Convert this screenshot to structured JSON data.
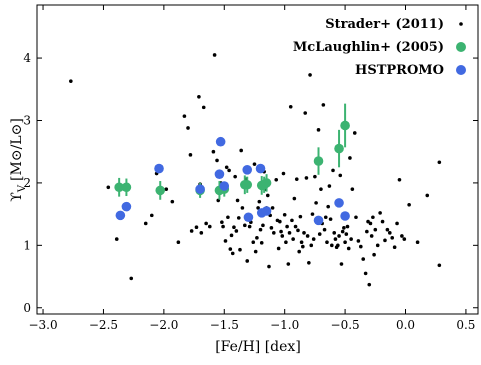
{
  "chart_data": {
    "type": "scatter",
    "title": "",
    "xlabel": "[Fe/H] [dex]",
    "ylabel_main": "ϒ",
    "ylabel_sub": "V",
    "ylabel_units": "[M⊙/L⊙]",
    "xlim": [
      -3.05,
      0.6
    ],
    "ylim": [
      -0.1,
      4.85
    ],
    "x_ticks": [
      -3.0,
      -2.5,
      -2.0,
      -1.5,
      -1.0,
      -0.5,
      0.0,
      0.5
    ],
    "x_tick_labels": [
      "−3.0",
      "−2.5",
      "−2.0",
      "−1.5",
      "−1.0",
      "−0.5",
      "0.0",
      "0.5"
    ],
    "y_ticks": [
      0,
      1,
      2,
      3,
      4
    ],
    "y_tick_labels": [
      "0",
      "1",
      "2",
      "3",
      "4"
    ],
    "grid": false,
    "legend_position": "top-right",
    "series": [
      {
        "name": "Strader+ (2011)",
        "color": "#000000",
        "marker": "small-dot",
        "points": [
          [
            -2.77,
            3.63
          ],
          [
            -2.46,
            1.93
          ],
          [
            -2.39,
            1.1
          ],
          [
            -2.27,
            0.47
          ],
          [
            -2.15,
            1.35
          ],
          [
            -2.1,
            1.48
          ],
          [
            -2.06,
            2.15
          ],
          [
            -1.98,
            1.9
          ],
          [
            -1.93,
            1.7
          ],
          [
            -1.88,
            1.05
          ],
          [
            -1.83,
            3.07
          ],
          [
            -1.8,
            2.88
          ],
          [
            -1.78,
            2.45
          ],
          [
            -1.77,
            1.23
          ],
          [
            -1.73,
            1.29
          ],
          [
            -1.71,
            3.38
          ],
          [
            -1.7,
            1.98
          ],
          [
            -1.69,
            1.2
          ],
          [
            -1.67,
            3.21
          ],
          [
            -1.65,
            1.35
          ],
          [
            -1.62,
            1.3
          ],
          [
            -1.59,
            2.5
          ],
          [
            -1.58,
            4.05
          ],
          [
            -1.56,
            2.36
          ],
          [
            -1.55,
            1.72
          ],
          [
            -1.53,
            2.0
          ],
          [
            -1.52,
            1.37
          ],
          [
            -1.51,
            1.3
          ],
          [
            -1.49,
            1.07
          ],
          [
            -1.48,
            2.25
          ],
          [
            -1.47,
            1.45
          ],
          [
            -1.46,
            2.2
          ],
          [
            -1.45,
            0.94
          ],
          [
            -1.44,
            1.16
          ],
          [
            -1.43,
            0.87
          ],
          [
            -1.42,
            1.29
          ],
          [
            -1.41,
            2.1
          ],
          [
            -1.4,
            1.23
          ],
          [
            -1.39,
            1.72
          ],
          [
            -1.38,
            1.44
          ],
          [
            -1.37,
            0.93
          ],
          [
            -1.36,
            2.52
          ],
          [
            -1.35,
            1.6
          ],
          [
            -1.34,
            1.95
          ],
          [
            -1.33,
            1.32
          ],
          [
            -1.32,
            2.06
          ],
          [
            -1.31,
            0.75
          ],
          [
            -1.29,
            1.3
          ],
          [
            -1.28,
            1.37
          ],
          [
            -1.26,
            1.05
          ],
          [
            -1.25,
            2.3
          ],
          [
            -1.24,
            0.9
          ],
          [
            -1.23,
            1.12
          ],
          [
            -1.22,
            1.6
          ],
          [
            -1.21,
            1.7
          ],
          [
            -1.2,
            1.25
          ],
          [
            -1.19,
            1.04
          ],
          [
            -1.18,
            1.32
          ],
          [
            -1.17,
            2.18
          ],
          [
            -1.16,
            1.9
          ],
          [
            -1.15,
            1.6
          ],
          [
            -1.14,
            1.8
          ],
          [
            -1.13,
            0.66
          ],
          [
            -1.12,
            1.48
          ],
          [
            -1.11,
            1.28
          ],
          [
            -1.1,
            1.6
          ],
          [
            -1.09,
            1.2
          ],
          [
            -1.07,
            2.05
          ],
          [
            -1.06,
            1.4
          ],
          [
            -1.05,
            0.95
          ],
          [
            -1.04,
            1.38
          ],
          [
            -1.03,
            1.22
          ],
          [
            -1.02,
            1.15
          ],
          [
            -1.01,
            2.15
          ],
          [
            -1.0,
            1.49
          ],
          [
            -0.99,
            1.05
          ],
          [
            -0.98,
            1.3
          ],
          [
            -0.97,
            0.7
          ],
          [
            -0.96,
            1.2
          ],
          [
            -0.95,
            3.22
          ],
          [
            -0.94,
            1.4
          ],
          [
            -0.93,
            1.1
          ],
          [
            -0.92,
            1.75
          ],
          [
            -0.91,
            1.3
          ],
          [
            -0.9,
            2.06
          ],
          [
            -0.89,
            1.24
          ],
          [
            -0.88,
            0.9
          ],
          [
            -0.87,
            1.46
          ],
          [
            -0.86,
            1.05
          ],
          [
            -0.85,
            0.98
          ],
          [
            -0.84,
            1.2
          ],
          [
            -0.83,
            3.12
          ],
          [
            -0.82,
            2.08
          ],
          [
            -0.81,
            1.15
          ],
          [
            -0.8,
            0.72
          ],
          [
            -0.79,
            3.73
          ],
          [
            -0.78,
            1.0
          ],
          [
            -0.77,
            1.5
          ],
          [
            -0.76,
            1.1
          ],
          [
            -0.75,
            2.1
          ],
          [
            -0.74,
            1.68
          ],
          [
            -0.73,
            1.38
          ],
          [
            -0.72,
            2.85
          ],
          [
            -0.71,
            1.18
          ],
          [
            -0.7,
            1.9
          ],
          [
            -0.69,
            1.35
          ],
          [
            -0.68,
            3.25
          ],
          [
            -0.67,
            1.25
          ],
          [
            -0.66,
            1.45
          ],
          [
            -0.65,
            1.05
          ],
          [
            -0.64,
            1.62
          ],
          [
            -0.63,
            1.95
          ],
          [
            -0.62,
            1.42
          ],
          [
            -0.61,
            1.0
          ],
          [
            -0.6,
            2.2
          ],
          [
            -0.59,
            1.2
          ],
          [
            -0.58,
            1.1
          ],
          [
            -0.57,
            0.97
          ],
          [
            -0.56,
            1.0
          ],
          [
            -0.55,
            1.15
          ],
          [
            -0.54,
            2.12
          ],
          [
            -0.53,
            0.7
          ],
          [
            -0.52,
            1.22
          ],
          [
            -0.51,
            1.28
          ],
          [
            -0.5,
            1.05
          ],
          [
            -0.49,
            1.18
          ],
          [
            -0.48,
            1.3
          ],
          [
            -0.47,
            0.95
          ],
          [
            -0.46,
            2.4
          ],
          [
            -0.45,
            1.1
          ],
          [
            -0.44,
            1.9
          ],
          [
            -0.42,
            2.8
          ],
          [
            -0.41,
            1.45
          ],
          [
            -0.39,
            1.07
          ],
          [
            -0.37,
            0.98
          ],
          [
            -0.35,
            0.78
          ],
          [
            -0.33,
            0.55
          ],
          [
            -0.32,
            1.22
          ],
          [
            -0.31,
            1.38
          ],
          [
            -0.3,
            0.37
          ],
          [
            -0.29,
            1.35
          ],
          [
            -0.28,
            1.15
          ],
          [
            -0.27,
            1.45
          ],
          [
            -0.26,
            0.85
          ],
          [
            -0.25,
            1.25
          ],
          [
            -0.23,
            1.0
          ],
          [
            -0.21,
            1.52
          ],
          [
            -0.19,
            1.38
          ],
          [
            -0.17,
            1.08
          ],
          [
            -0.15,
            1.25
          ],
          [
            -0.13,
            1.2
          ],
          [
            -0.11,
            1.12
          ],
          [
            -0.09,
            0.97
          ],
          [
            -0.07,
            1.35
          ],
          [
            -0.05,
            2.05
          ],
          [
            -0.03,
            1.15
          ],
          [
            -0.01,
            1.1
          ],
          [
            0.03,
            1.65
          ],
          [
            0.1,
            1.05
          ],
          [
            0.18,
            1.8
          ],
          [
            0.28,
            2.33
          ],
          [
            0.28,
            0.68
          ]
        ]
      },
      {
        "name": "McLaughlin+ (2005)",
        "color": "#3cb371",
        "marker": "circle-errorbar",
        "points": [
          [
            -2.37,
            1.93,
            0.15
          ],
          [
            -2.31,
            1.93,
            0.14
          ],
          [
            -2.03,
            1.88,
            0.15
          ],
          [
            -1.7,
            1.88,
            0.12
          ],
          [
            -1.54,
            1.88,
            0.15
          ],
          [
            -1.5,
            1.9,
            0.12
          ],
          [
            -1.33,
            1.97,
            0.15
          ],
          [
            -1.31,
            1.97,
            0.13
          ],
          [
            -1.19,
            1.96,
            0.15
          ],
          [
            -1.17,
            1.97,
            0.13
          ],
          [
            -1.15,
            2.0,
            0.14
          ],
          [
            -0.72,
            2.35,
            0.22
          ],
          [
            -0.55,
            2.55,
            0.3
          ],
          [
            -0.5,
            2.92,
            0.35
          ]
        ]
      },
      {
        "name": "HSTPROMO",
        "color": "#4169e1",
        "marker": "circle",
        "points": [
          [
            -2.36,
            1.48
          ],
          [
            -2.31,
            1.62
          ],
          [
            -2.04,
            2.23
          ],
          [
            -1.7,
            1.9
          ],
          [
            -1.54,
            2.14
          ],
          [
            -1.53,
            2.66
          ],
          [
            -1.5,
            1.95
          ],
          [
            -1.31,
            2.21
          ],
          [
            -1.3,
            1.45
          ],
          [
            -1.2,
            2.23
          ],
          [
            -1.19,
            1.52
          ],
          [
            -1.15,
            1.55
          ],
          [
            -0.72,
            1.4
          ],
          [
            -0.55,
            1.68
          ],
          [
            -0.5,
            1.47
          ]
        ]
      }
    ]
  }
}
